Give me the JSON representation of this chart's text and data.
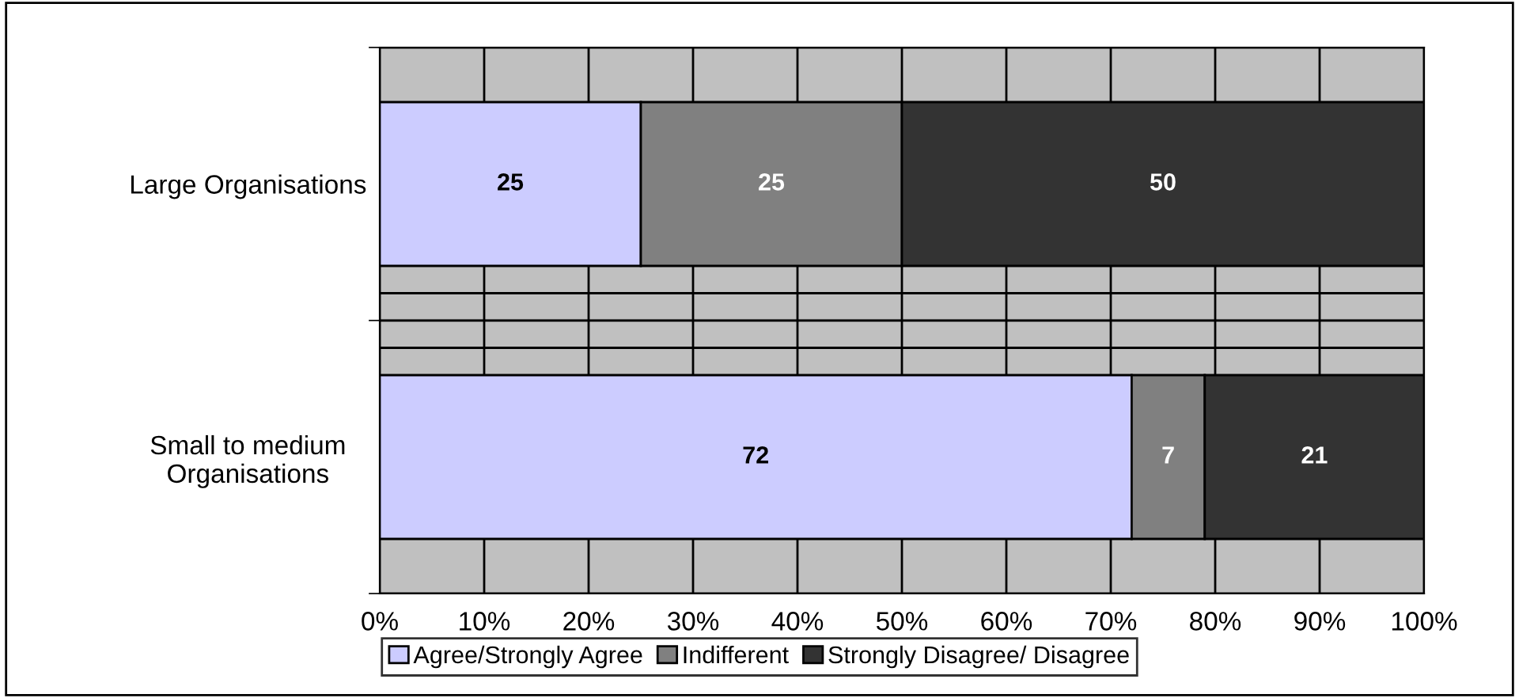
{
  "chart_data": {
    "type": "bar",
    "orientation": "horizontal",
    "stacked": true,
    "categories": [
      "Large Organisations",
      "Small to medium\nOrganisations"
    ],
    "series": [
      {
        "name": "Agree/Strongly Agree",
        "color": "#ccccff",
        "values": [
          25,
          72
        ]
      },
      {
        "name": "Indifferent",
        "color": "#808080",
        "values": [
          25,
          7
        ]
      },
      {
        "name": "Strongly Disagree/ Disagree",
        "color": "#333333",
        "values": [
          50,
          21
        ]
      }
    ],
    "xlim": [
      0,
      100
    ],
    "xticks": [
      {
        "value": 0,
        "label": "0%"
      },
      {
        "value": 10,
        "label": "10%"
      },
      {
        "value": 20,
        "label": "20%"
      },
      {
        "value": 30,
        "label": "30%"
      },
      {
        "value": 40,
        "label": "40%"
      },
      {
        "value": 50,
        "label": "50%"
      },
      {
        "value": 60,
        "label": "60%"
      },
      {
        "value": 70,
        "label": "70%"
      },
      {
        "value": 80,
        "label": "80%"
      },
      {
        "value": 90,
        "label": "90%"
      },
      {
        "value": 100,
        "label": "100%"
      }
    ],
    "data_labels": true,
    "grid": true,
    "legend": "bottom"
  }
}
